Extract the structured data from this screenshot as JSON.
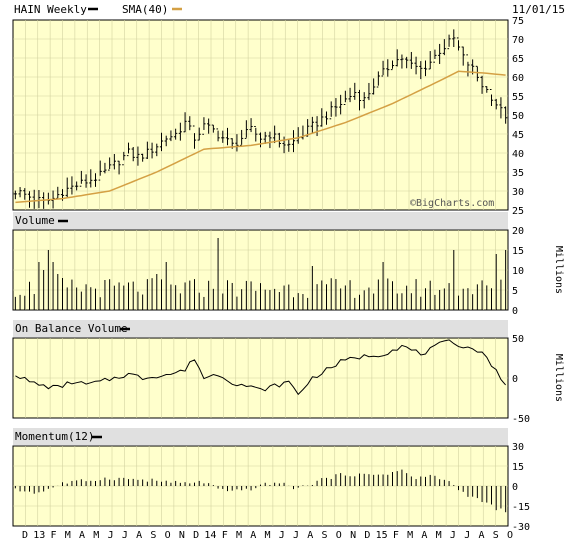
{
  "header": {
    "symbol_label": "HAIN Weekly",
    "sma_label": "SMA(40)",
    "date": "11/01/15"
  },
  "colors": {
    "plot_bg": "#ffffcc",
    "grid": "#d2d2a0",
    "price_bars": "#000000",
    "sma_line": "#d4a044",
    "panel_header_bg": "#e0e0e0"
  },
  "chart_data": [
    {
      "type": "ohlc",
      "title": "HAIN Weekly",
      "legend": [
        "HAIN Weekly",
        "SMA(40)"
      ],
      "x_ticks": [
        "D",
        "13",
        "F",
        "M",
        "A",
        "M",
        "J",
        "J",
        "A",
        "S",
        "O",
        "N",
        "D",
        "14",
        "F",
        "M",
        "A",
        "M",
        "J",
        "J",
        "A",
        "S",
        "O",
        "N",
        "D",
        "15",
        "F",
        "M",
        "A",
        "M",
        "J",
        "J",
        "A",
        "S",
        "O"
      ],
      "ylim": [
        25,
        75
      ],
      "y_ticks": [
        25,
        30,
        35,
        40,
        45,
        50,
        55,
        60,
        65,
        70,
        75
      ],
      "watermark": "©BigCharts.com",
      "price_anchors": [
        [
          0,
          30
        ],
        [
          4,
          28
        ],
        [
          6,
          27
        ],
        [
          8,
          28
        ],
        [
          10,
          30
        ],
        [
          12,
          31
        ],
        [
          14,
          32
        ],
        [
          16,
          33
        ],
        [
          18,
          34
        ],
        [
          20,
          36
        ],
        [
          22,
          38
        ],
        [
          24,
          40
        ],
        [
          26,
          39
        ],
        [
          28,
          40
        ],
        [
          30,
          42
        ],
        [
          32,
          44
        ],
        [
          34,
          45
        ],
        [
          36,
          48
        ],
        [
          38,
          44
        ],
        [
          40,
          47
        ],
        [
          42,
          46
        ],
        [
          44,
          44
        ],
        [
          46,
          42
        ],
        [
          48,
          44
        ],
        [
          50,
          46
        ],
        [
          52,
          44
        ],
        [
          54,
          45
        ],
        [
          56,
          43
        ],
        [
          58,
          42
        ],
        [
          60,
          44
        ],
        [
          62,
          46
        ],
        [
          64,
          48
        ],
        [
          66,
          50
        ],
        [
          68,
          52
        ],
        [
          70,
          54
        ],
        [
          72,
          56
        ],
        [
          74,
          54
        ],
        [
          76,
          58
        ],
        [
          78,
          61
        ],
        [
          80,
          64
        ],
        [
          82,
          65
        ],
        [
          84,
          63
        ],
        [
          86,
          62
        ],
        [
          88,
          64
        ],
        [
          90,
          67
        ],
        [
          92,
          69
        ],
        [
          93,
          70
        ],
        [
          95,
          65
        ],
        [
          97,
          62
        ],
        [
          99,
          58
        ],
        [
          101,
          55
        ],
        [
          103,
          51
        ],
        [
          104,
          50
        ]
      ],
      "sma_anchors": [
        [
          0,
          27
        ],
        [
          10,
          28
        ],
        [
          20,
          30
        ],
        [
          30,
          35
        ],
        [
          40,
          41
        ],
        [
          50,
          42
        ],
        [
          60,
          44
        ],
        [
          70,
          48
        ],
        [
          80,
          53
        ],
        [
          90,
          59
        ],
        [
          94,
          61.5
        ],
        [
          100,
          61
        ],
        [
          104,
          60.5
        ]
      ]
    },
    {
      "type": "bar",
      "title": "Volume",
      "units": "Millions",
      "ylim": [
        0,
        20
      ],
      "y_ticks": [
        0,
        5,
        10,
        15,
        20
      ],
      "spikes": [
        [
          5,
          12
        ],
        [
          6,
          10
        ],
        [
          7,
          15
        ],
        [
          8,
          12
        ],
        [
          9,
          9
        ],
        [
          10,
          8
        ],
        [
          30,
          9
        ],
        [
          32,
          12
        ],
        [
          43,
          18
        ],
        [
          63,
          11
        ],
        [
          78,
          12
        ],
        [
          93,
          15
        ],
        [
          102,
          14
        ],
        [
          104,
          15
        ]
      ]
    },
    {
      "type": "line",
      "title": "On Balance Volume",
      "units": "Millions",
      "ylim": [
        -50,
        50
      ],
      "y_ticks": [
        -50,
        0,
        50
      ],
      "anchors": [
        [
          0,
          5
        ],
        [
          3,
          -5
        ],
        [
          6,
          -10
        ],
        [
          9,
          -12
        ],
        [
          12,
          -5
        ],
        [
          15,
          -8
        ],
        [
          18,
          -5
        ],
        [
          21,
          0
        ],
        [
          24,
          5
        ],
        [
          27,
          0
        ],
        [
          30,
          3
        ],
        [
          33,
          5
        ],
        [
          36,
          10
        ],
        [
          38,
          25
        ],
        [
          40,
          0
        ],
        [
          43,
          5
        ],
        [
          46,
          -5
        ],
        [
          49,
          -10
        ],
        [
          52,
          -15
        ],
        [
          55,
          -10
        ],
        [
          58,
          -5
        ],
        [
          60,
          -20
        ],
        [
          63,
          0
        ],
        [
          66,
          10
        ],
        [
          69,
          20
        ],
        [
          72,
          25
        ],
        [
          75,
          28
        ],
        [
          78,
          30
        ],
        [
          80,
          35
        ],
        [
          82,
          40
        ],
        [
          84,
          35
        ],
        [
          86,
          30
        ],
        [
          88,
          35
        ],
        [
          90,
          42
        ],
        [
          92,
          45
        ],
        [
          94,
          42
        ],
        [
          96,
          38
        ],
        [
          98,
          35
        ],
        [
          100,
          25
        ],
        [
          102,
          10
        ],
        [
          104,
          -10
        ]
      ]
    },
    {
      "type": "bar",
      "title": "Momentum(12)",
      "ylim": [
        -30,
        30
      ],
      "y_ticks": [
        -30,
        -15,
        0,
        15,
        30
      ],
      "anchors": [
        [
          0,
          -3
        ],
        [
          5,
          -5
        ],
        [
          10,
          2
        ],
        [
          15,
          4
        ],
        [
          20,
          6
        ],
        [
          25,
          5
        ],
        [
          30,
          4
        ],
        [
          35,
          2
        ],
        [
          40,
          3
        ],
        [
          45,
          -5
        ],
        [
          50,
          -2
        ],
        [
          55,
          3
        ],
        [
          60,
          -2
        ],
        [
          65,
          5
        ],
        [
          70,
          9
        ],
        [
          75,
          8
        ],
        [
          80,
          10
        ],
        [
          82,
          12
        ],
        [
          85,
          5
        ],
        [
          88,
          8
        ],
        [
          90,
          6
        ],
        [
          92,
          3
        ],
        [
          95,
          -5
        ],
        [
          98,
          -10
        ],
        [
          101,
          -15
        ],
        [
          104,
          -20
        ]
      ]
    }
  ]
}
